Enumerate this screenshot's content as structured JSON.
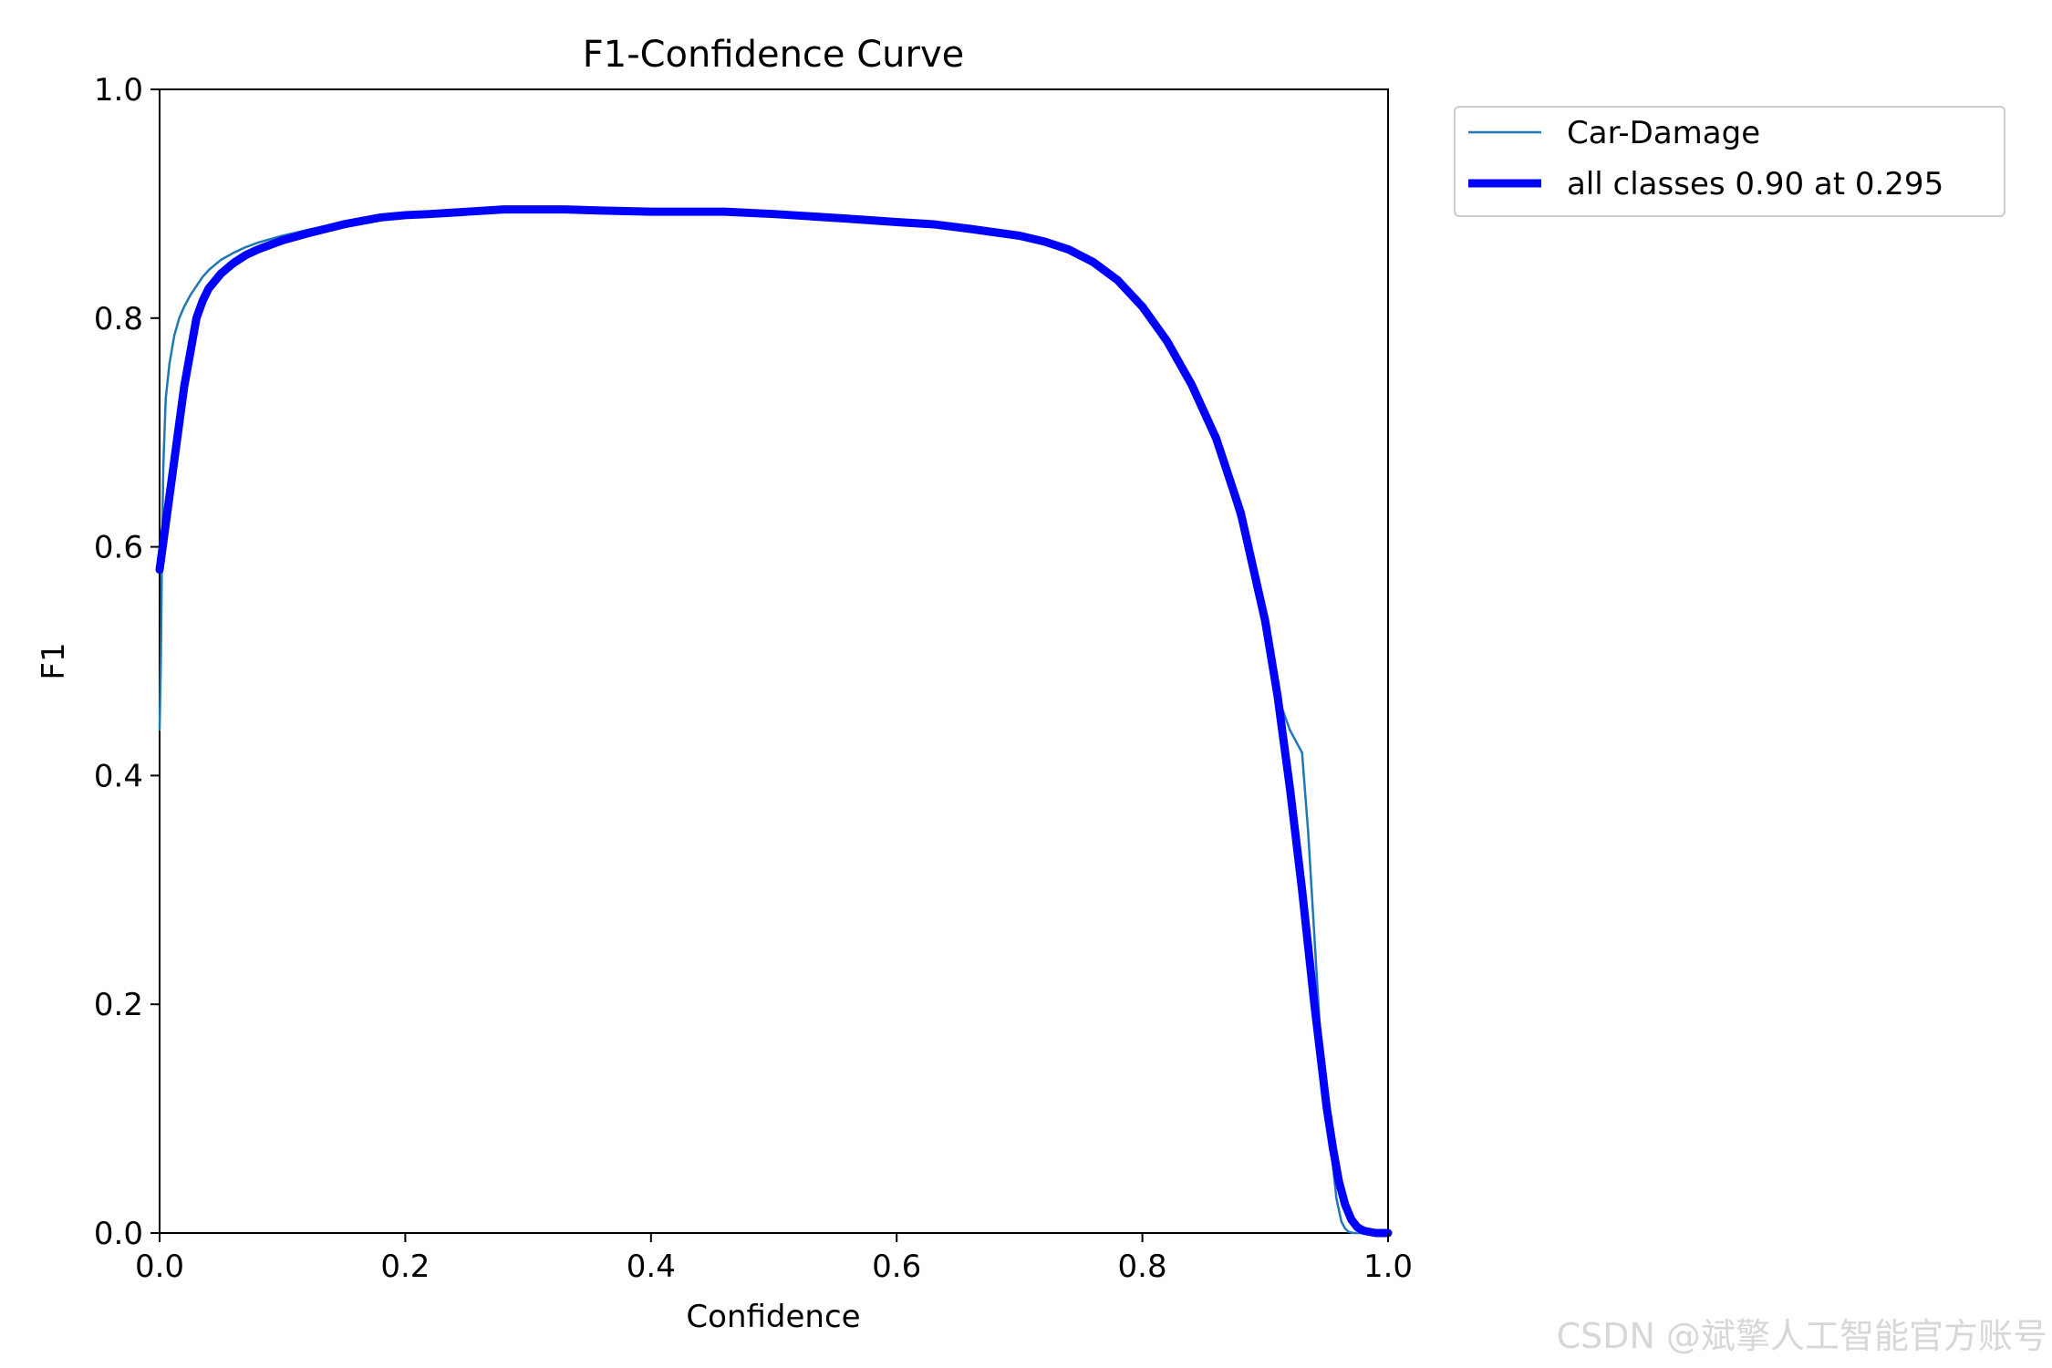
{
  "chart_data": {
    "type": "line",
    "title": "F1-Confidence Curve",
    "xlabel": "Confidence",
    "ylabel": "F1",
    "xlim": [
      0.0,
      1.0
    ],
    "ylim": [
      0.0,
      1.0
    ],
    "xticks": [
      "0.0",
      "0.2",
      "0.4",
      "0.6",
      "0.8",
      "1.0"
    ],
    "yticks": [
      "0.0",
      "0.2",
      "0.4",
      "0.6",
      "0.8",
      "1.0"
    ],
    "grid": false,
    "legend_position": "outside top-right",
    "series": [
      {
        "name": "Car-Damage",
        "color": "#1f77b4",
        "style": "thin",
        "x": [
          0.0,
          0.001,
          0.002,
          0.003,
          0.005,
          0.008,
          0.012,
          0.016,
          0.02,
          0.025,
          0.03,
          0.035,
          0.04,
          0.05,
          0.06,
          0.07,
          0.08,
          0.1,
          0.12,
          0.15,
          0.18,
          0.2,
          0.22,
          0.25,
          0.28,
          0.3,
          0.33,
          0.36,
          0.4,
          0.43,
          0.46,
          0.5,
          0.53,
          0.56,
          0.6,
          0.63,
          0.66,
          0.7,
          0.72,
          0.74,
          0.76,
          0.78,
          0.8,
          0.82,
          0.84,
          0.86,
          0.88,
          0.9,
          0.91,
          0.92,
          0.925,
          0.93,
          0.935,
          0.94,
          0.945,
          0.95,
          0.955,
          0.958,
          0.96,
          0.962,
          0.965,
          0.968,
          0.972,
          0.98,
          0.99,
          1.0
        ],
        "y": [
          0.44,
          0.5,
          0.6,
          0.67,
          0.73,
          0.76,
          0.785,
          0.8,
          0.81,
          0.82,
          0.828,
          0.836,
          0.842,
          0.851,
          0.857,
          0.862,
          0.866,
          0.872,
          0.877,
          0.884,
          0.889,
          0.891,
          0.892,
          0.894,
          0.895,
          0.895,
          0.895,
          0.894,
          0.893,
          0.893,
          0.893,
          0.891,
          0.889,
          0.887,
          0.884,
          0.882,
          0.879,
          0.873,
          0.868,
          0.86,
          0.849,
          0.833,
          0.81,
          0.78,
          0.74,
          0.69,
          0.62,
          0.53,
          0.47,
          0.44,
          0.43,
          0.42,
          0.35,
          0.26,
          0.17,
          0.11,
          0.06,
          0.03,
          0.02,
          0.01,
          0.004,
          0.001,
          0.0,
          0.0,
          0.0,
          0.0
        ]
      },
      {
        "name": "all classes 0.90 at 0.295",
        "color": "#0000ff",
        "style": "thick",
        "x": [
          0.0,
          0.01,
          0.02,
          0.03,
          0.035,
          0.04,
          0.05,
          0.06,
          0.07,
          0.08,
          0.1,
          0.12,
          0.15,
          0.18,
          0.2,
          0.22,
          0.25,
          0.28,
          0.3,
          0.33,
          0.36,
          0.4,
          0.43,
          0.46,
          0.5,
          0.53,
          0.56,
          0.6,
          0.63,
          0.66,
          0.7,
          0.72,
          0.74,
          0.76,
          0.78,
          0.8,
          0.82,
          0.84,
          0.86,
          0.88,
          0.9,
          0.91,
          0.92,
          0.93,
          0.94,
          0.95,
          0.955,
          0.96,
          0.965,
          0.97,
          0.975,
          0.98,
          0.99,
          1.0
        ],
        "y": [
          0.58,
          0.66,
          0.74,
          0.8,
          0.815,
          0.826,
          0.839,
          0.848,
          0.855,
          0.86,
          0.868,
          0.874,
          0.882,
          0.888,
          0.89,
          0.891,
          0.893,
          0.895,
          0.895,
          0.895,
          0.894,
          0.893,
          0.893,
          0.893,
          0.891,
          0.889,
          0.887,
          0.884,
          0.882,
          0.878,
          0.872,
          0.867,
          0.86,
          0.849,
          0.833,
          0.81,
          0.78,
          0.742,
          0.695,
          0.63,
          0.535,
          0.47,
          0.39,
          0.3,
          0.2,
          0.11,
          0.075,
          0.045,
          0.025,
          0.012,
          0.005,
          0.002,
          0.0,
          0.0
        ]
      }
    ]
  },
  "watermark": "CSDN @斌擎人工智能官方账号"
}
